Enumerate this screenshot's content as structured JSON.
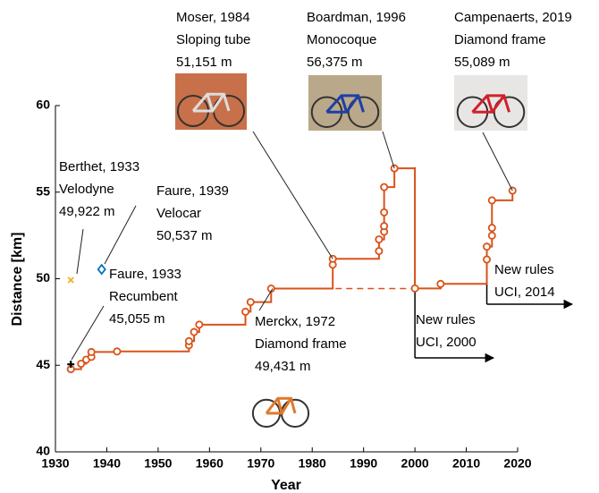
{
  "chart_data": {
    "type": "line",
    "xlabel": "Year",
    "ylabel": "Distance [km]",
    "xlim": [
      1930,
      2020
    ],
    "ylim": [
      40,
      60
    ],
    "xticks": [
      1930,
      1940,
      1950,
      1960,
      1970,
      1980,
      1990,
      2000,
      2010,
      2020
    ],
    "yticks": [
      40,
      45,
      50,
      55,
      60
    ],
    "color": "#d95319",
    "x": [
      1933,
      1935,
      1936,
      1937,
      1937,
      1942,
      1956,
      1956,
      1957,
      1958,
      1967,
      1968,
      1972,
      1984,
      1984,
      1993,
      1993,
      1994,
      1994,
      1994,
      1994,
      1996,
      2000,
      2005,
      2014,
      2014,
      2015,
      2015,
      2015,
      2019
    ],
    "values": [
      44.777,
      45.09,
      45.325,
      45.485,
      45.767,
      45.798,
      46.159,
      46.394,
      46.923,
      47.346,
      48.093,
      48.653,
      49.431,
      50.808,
      51.151,
      51.596,
      52.27,
      52.713,
      53.04,
      53.832,
      55.291,
      56.375,
      49.441,
      49.7,
      51.11,
      51.852,
      52.491,
      52.937,
      54.526,
      55.089
    ],
    "other_records": [
      {
        "lines": [
          "Berthet, 1933",
          "Velodyne",
          "49,922 m"
        ],
        "x": 1933,
        "y": 49.922,
        "marker": "x",
        "color": "#edb120"
      },
      {
        "lines": [
          "Faure, 1939",
          "Velocar",
          "50,537 m"
        ],
        "x": 1939,
        "y": 50.537,
        "marker": "diamond",
        "color": "#0072bd"
      },
      {
        "lines": [
          "Faure, 1933",
          "Recumbent",
          "45,055 m"
        ],
        "x": 1933,
        "y": 45.055,
        "marker": "plus",
        "color": "#000000"
      }
    ],
    "annotations": [
      {
        "lines": [
          "Moser, 1984",
          "Sloping tube",
          "51,151 m"
        ]
      },
      {
        "lines": [
          "Boardman, 1996",
          "Monocoque",
          "56,375 m"
        ]
      },
      {
        "lines": [
          "Campenaerts, 2019",
          "Diamond frame",
          "55,089 m"
        ]
      },
      {
        "lines": [
          "Merckx, 1972",
          "Diamond frame",
          "49,431 m"
        ]
      }
    ],
    "rules": [
      {
        "lines": [
          "New rules",
          "UCI, 2000"
        ],
        "x": 2000
      },
      {
        "lines": [
          "New rules",
          "UCI, 2014"
        ],
        "x": 2014
      }
    ]
  }
}
